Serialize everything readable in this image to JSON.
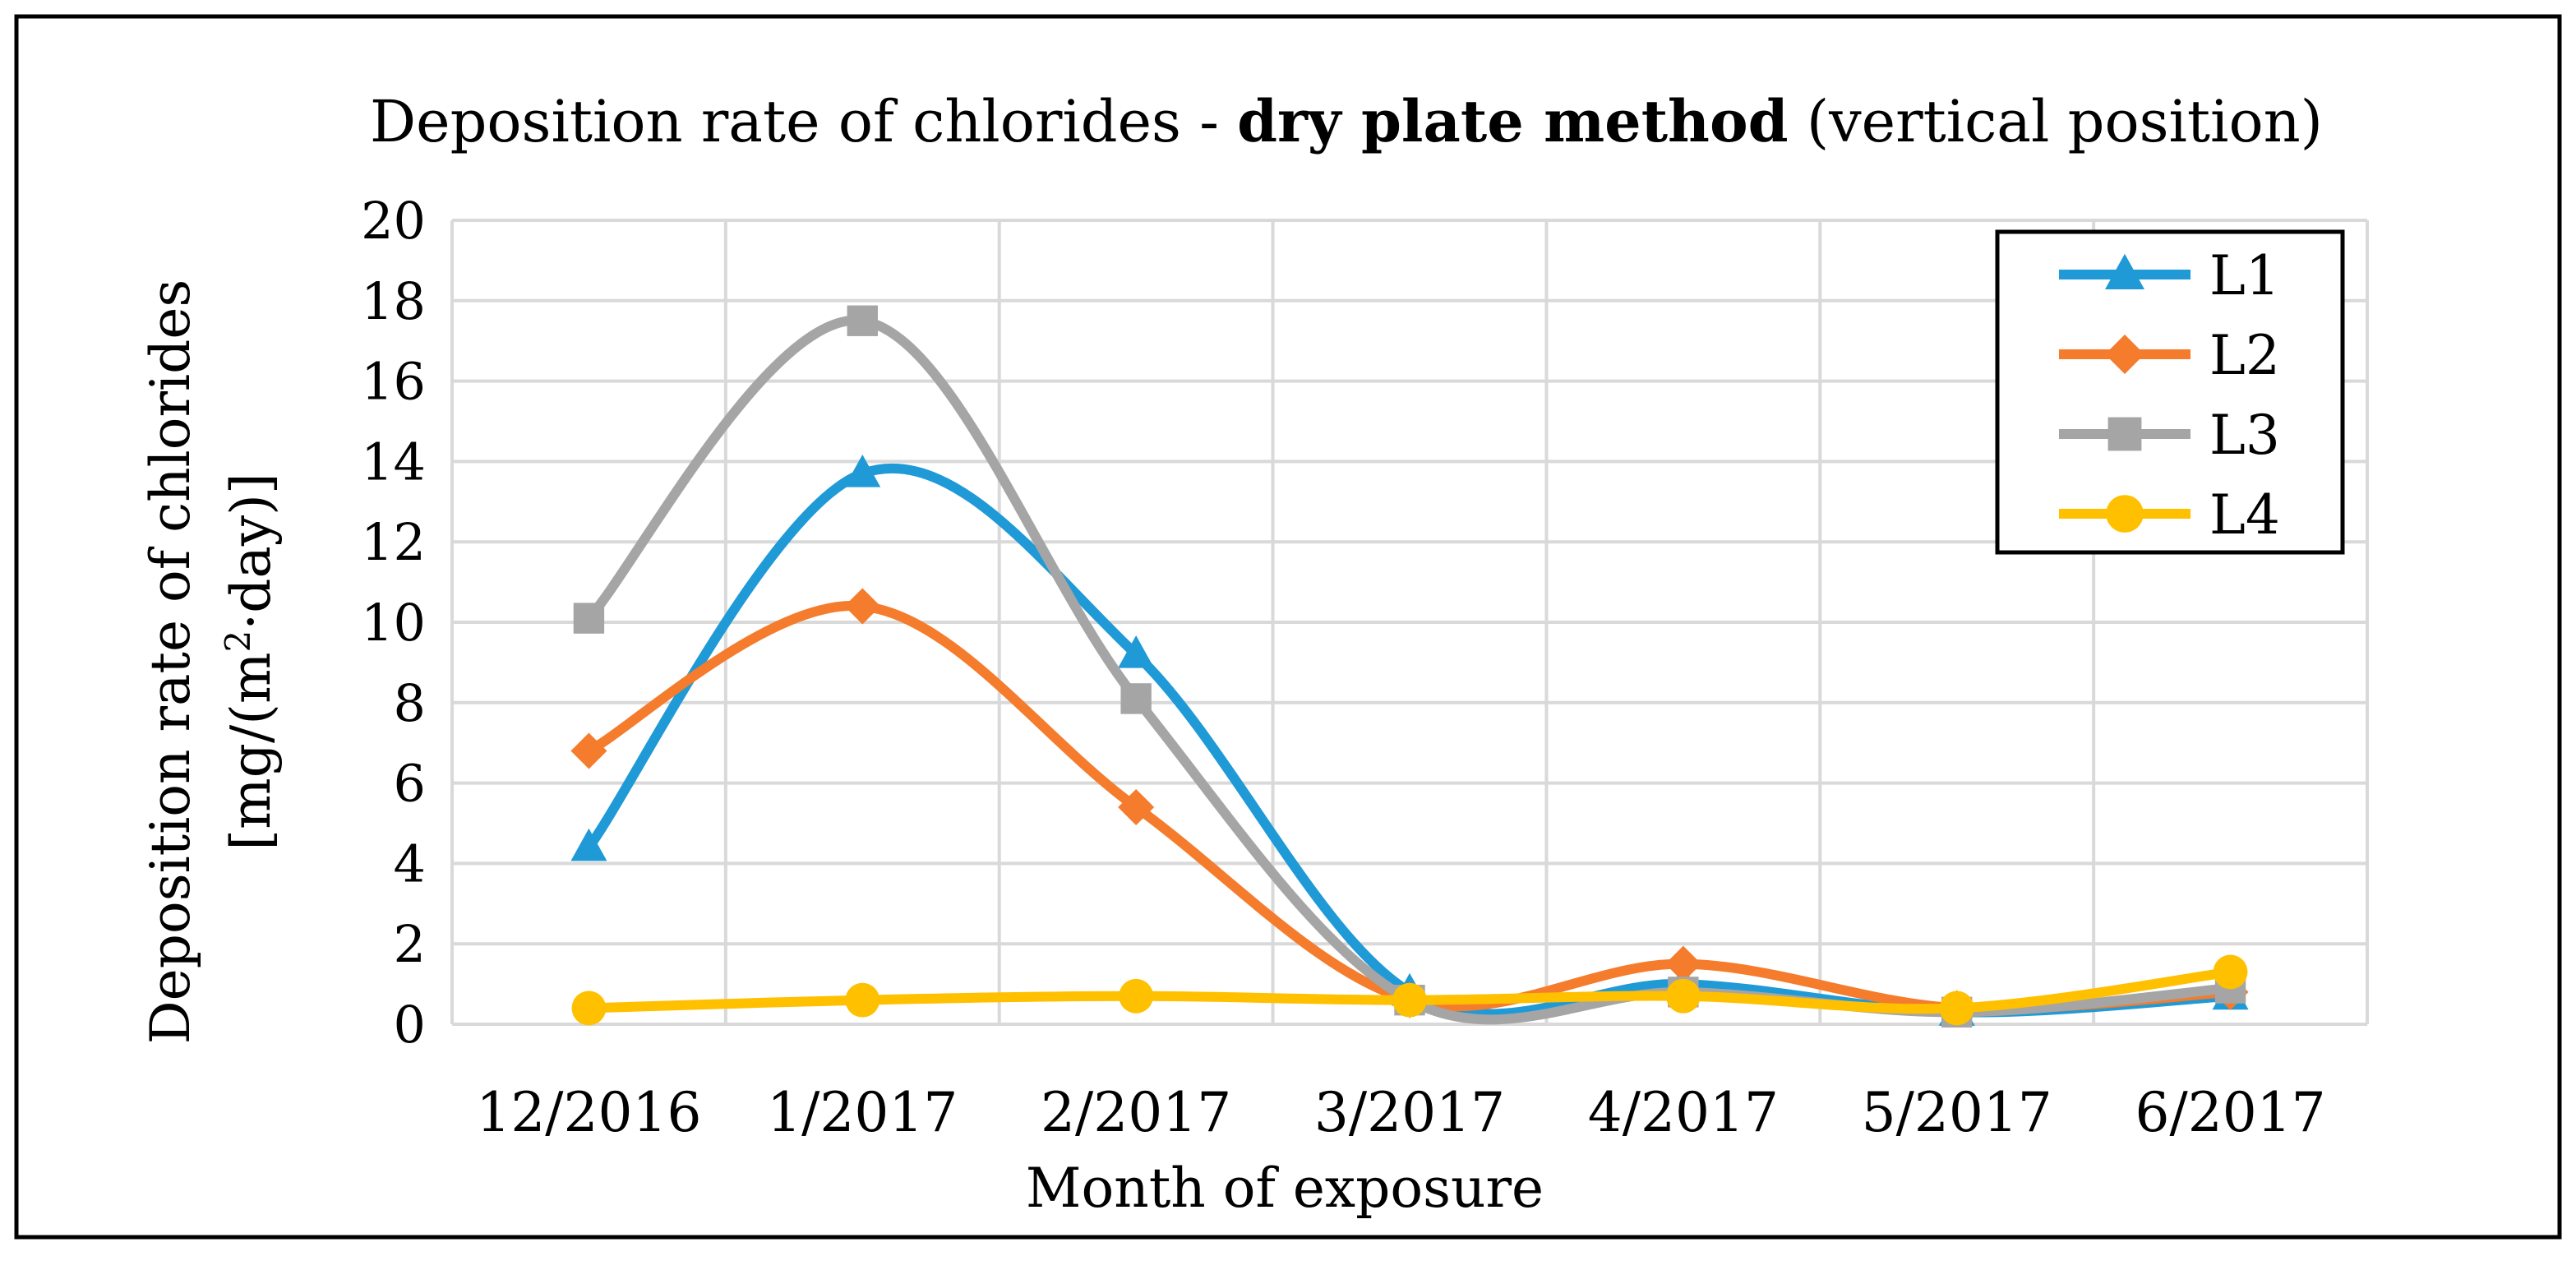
{
  "chart_data": {
    "type": "line",
    "title_prefix": "Deposition rate of chlorides - ",
    "title_bold": "dry plate method",
    "title_suffix": " (vertical position)",
    "xlabel": "Month of exposure",
    "ylabel_line1": "Deposition rate of chlorides",
    "ylabel_line2_pre": "[mg/(m",
    "ylabel_line2_sup": "2",
    "ylabel_line2_post": "·day)]",
    "categories": [
      "12/2016",
      "1/2017",
      "2/2017",
      "3/2017",
      "4/2017",
      "5/2017",
      "6/2017"
    ],
    "ylim": [
      0,
      20
    ],
    "yticks": [
      0,
      2,
      4,
      6,
      8,
      10,
      12,
      14,
      16,
      18,
      20
    ],
    "ytick_labels": [
      "0",
      "2",
      "4",
      "6",
      "8",
      "10",
      "12",
      "14",
      "16",
      "18",
      "20"
    ],
    "grid": true,
    "smooth": true,
    "legend_position": "top-right",
    "series": [
      {
        "name": "L1",
        "color": "#1f9ad6",
        "marker": "triangle",
        "values": [
          4.4,
          13.7,
          9.2,
          0.8,
          1.0,
          0.3,
          0.7
        ]
      },
      {
        "name": "L2",
        "color": "#f47c2c",
        "marker": "diamond",
        "values": [
          6.8,
          10.4,
          5.4,
          0.6,
          1.5,
          0.4,
          0.8
        ]
      },
      {
        "name": "L3",
        "color": "#a5a5a5",
        "marker": "square",
        "values": [
          10.1,
          17.5,
          8.1,
          0.6,
          0.8,
          0.3,
          0.9
        ]
      },
      {
        "name": "L4",
        "color": "#ffc000",
        "marker": "circle",
        "values": [
          0.4,
          0.6,
          0.7,
          0.6,
          0.7,
          0.4,
          1.3
        ]
      }
    ]
  }
}
